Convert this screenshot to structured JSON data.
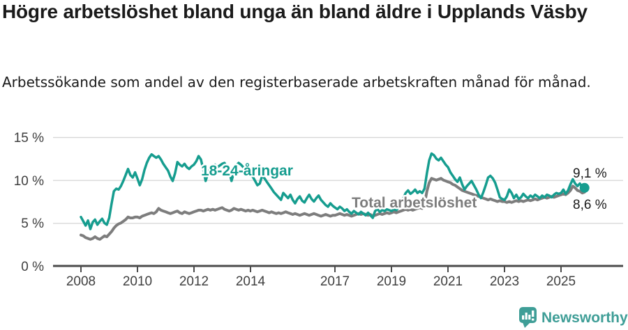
{
  "title": "Högre arbetslöshet bland unga än bland äldre i Upplands Väsby",
  "subtitle": "Arbetssökande som andel av den registerbaserade arbetskraften månad för månad.",
  "chart_data": {
    "type": "line",
    "unit": "%",
    "frequency": "monthly",
    "period": "2008-01 to 2025-11",
    "ylim": [
      0,
      15
    ],
    "grid": "horizontal",
    "ytick_labels": [
      "15 %",
      "10 %",
      "5 %",
      "0 %"
    ],
    "xtick_labels": [
      "2008",
      "2010",
      "2012",
      "2014",
      "2017",
      "2019",
      "2021",
      "2023",
      "2025"
    ],
    "xtick_years": [
      2008,
      2010,
      2012,
      2014,
      2017,
      2019,
      2021,
      2023,
      2025
    ],
    "colors": {
      "young": "#169d8f",
      "total": "#7d7d7d"
    },
    "series": [
      {
        "name": "18-24-åringar",
        "color": "#169d8f",
        "end_label": "9,1 %",
        "end_value": 9.1,
        "values": [
          5.7,
          5.2,
          4.7,
          5.3,
          4.3,
          5.1,
          5.4,
          4.8,
          5.2,
          5.5,
          5.0,
          4.8,
          5.6,
          7.2,
          8.7,
          9.0,
          8.9,
          9.3,
          9.9,
          10.6,
          11.3,
          10.6,
          10.3,
          10.9,
          10.2,
          9.4,
          10.1,
          11.2,
          12.0,
          12.6,
          13.0,
          12.8,
          12.6,
          12.8,
          12.4,
          11.9,
          11.5,
          11.1,
          10.4,
          9.9,
          10.8,
          12.1,
          11.8,
          11.6,
          11.9,
          11.5,
          11.3,
          11.6,
          11.8,
          12.2,
          12.8,
          12.4,
          11.2,
          9.9,
          10.8,
          11.4,
          11.6,
          11.8,
          11.5,
          11.7,
          11.9,
          12.0,
          11.5,
          11.0,
          9.9,
          10.9,
          11.7,
          12.0,
          11.8,
          11.5,
          11.2,
          11.0,
          10.8,
          10.4,
          9.9,
          9.4,
          9.6,
          10.5,
          10.2,
          9.8,
          9.4,
          9.0,
          8.6,
          8.3,
          8.0,
          7.7,
          8.5,
          8.2,
          7.9,
          8.3,
          7.7,
          7.3,
          7.8,
          8.1,
          7.6,
          7.4,
          7.9,
          8.3,
          7.8,
          7.5,
          7.9,
          8.2,
          7.7,
          7.4,
          7.1,
          6.9,
          7.3,
          7.0,
          6.8,
          6.6,
          6.9,
          6.7,
          6.4,
          6.6,
          6.3,
          6.1,
          6.4,
          6.2,
          6.0,
          6.3,
          6.1,
          5.9,
          6.2,
          5.9,
          5.6,
          6.4,
          6.6,
          6.3,
          6.5,
          6.4,
          6.6,
          6.5,
          6.4,
          6.6,
          6.5,
          6.8,
          7.2,
          7.9,
          8.5,
          8.8,
          8.4,
          8.6,
          8.9,
          8.5,
          8.7,
          8.5,
          9.0,
          10.8,
          12.3,
          13.1,
          12.9,
          12.5,
          12.3,
          12.6,
          12.2,
          11.8,
          11.5,
          10.9,
          10.5,
          10.1,
          9.8,
          10.3,
          9.5,
          8.9,
          9.3,
          9.6,
          9.9,
          9.4,
          8.9,
          8.3,
          7.9,
          8.6,
          9.4,
          10.3,
          10.5,
          10.2,
          9.7,
          8.9,
          8.0,
          7.8,
          7.7,
          8.1,
          8.9,
          8.5,
          7.9,
          8.3,
          7.8,
          8.0,
          8.4,
          8.1,
          7.9,
          8.2,
          8.0,
          8.3,
          8.1,
          7.9,
          8.2,
          8.0,
          8.3,
          8.2,
          8.0,
          8.3,
          8.5,
          8.4,
          8.5,
          8.9,
          8.4,
          8.8,
          9.5,
          10.1,
          9.6,
          9.3,
          9.6,
          9.2,
          9.1
        ]
      },
      {
        "name": "Total arbetslöshet",
        "color": "#7d7d7d",
        "end_label": "8,6 %",
        "end_value": 8.6,
        "values": [
          3.6,
          3.5,
          3.3,
          3.2,
          3.1,
          3.2,
          3.4,
          3.2,
          3.1,
          3.3,
          3.5,
          3.4,
          3.7,
          4.0,
          4.4,
          4.7,
          4.9,
          5.0,
          5.2,
          5.4,
          5.7,
          5.6,
          5.6,
          5.7,
          5.7,
          5.6,
          5.8,
          5.9,
          6.0,
          6.1,
          6.2,
          6.1,
          6.3,
          6.7,
          6.5,
          6.4,
          6.3,
          6.2,
          6.1,
          6.2,
          6.3,
          6.4,
          6.2,
          6.1,
          6.3,
          6.2,
          6.1,
          6.2,
          6.3,
          6.4,
          6.5,
          6.5,
          6.4,
          6.5,
          6.6,
          6.5,
          6.6,
          6.5,
          6.6,
          6.7,
          6.8,
          6.6,
          6.5,
          6.4,
          6.5,
          6.7,
          6.6,
          6.5,
          6.6,
          6.5,
          6.4,
          6.5,
          6.4,
          6.5,
          6.4,
          6.3,
          6.4,
          6.5,
          6.4,
          6.3,
          6.2,
          6.3,
          6.2,
          6.1,
          6.2,
          6.1,
          6.2,
          6.3,
          6.2,
          6.1,
          6.0,
          6.1,
          6.0,
          5.9,
          6.0,
          6.1,
          6.0,
          5.9,
          6.0,
          6.1,
          6.0,
          5.9,
          5.8,
          5.9,
          6.0,
          5.9,
          5.8,
          5.9,
          5.9,
          6.0,
          6.1,
          6.0,
          5.9,
          6.0,
          5.9,
          5.8,
          5.9,
          6.0,
          6.1,
          6.0,
          6.1,
          6.0,
          5.9,
          6.0,
          5.8,
          5.9,
          6.0,
          6.1,
          6.0,
          6.1,
          6.2,
          6.1,
          6.2,
          6.3,
          6.2,
          6.3,
          6.4,
          6.5,
          6.6,
          6.5,
          6.6,
          6.5,
          6.6,
          6.7,
          6.8,
          6.7,
          7.2,
          8.7,
          9.7,
          10.2,
          10.1,
          10.0,
          10.1,
          10.2,
          10.0,
          9.9,
          9.8,
          9.7,
          9.5,
          9.4,
          9.2,
          9.0,
          8.8,
          8.7,
          8.6,
          8.5,
          8.4,
          8.3,
          8.2,
          8.1,
          8.0,
          7.9,
          7.8,
          7.7,
          7.8,
          7.7,
          7.6,
          7.5,
          7.6,
          7.5,
          7.5,
          7.4,
          7.5,
          7.4,
          7.5,
          7.6,
          7.5,
          7.6,
          7.5,
          7.6,
          7.7,
          7.6,
          7.7,
          7.8,
          7.7,
          7.8,
          7.9,
          8.0,
          7.9,
          8.0,
          8.1,
          8.0,
          8.1,
          8.2,
          8.3,
          8.4,
          8.3,
          8.5,
          8.8,
          9.3,
          9.1,
          8.8,
          8.7,
          8.5,
          8.6
        ]
      }
    ]
  },
  "branding": {
    "logo_text": "Newsworthy",
    "color": "#3f9e97"
  }
}
